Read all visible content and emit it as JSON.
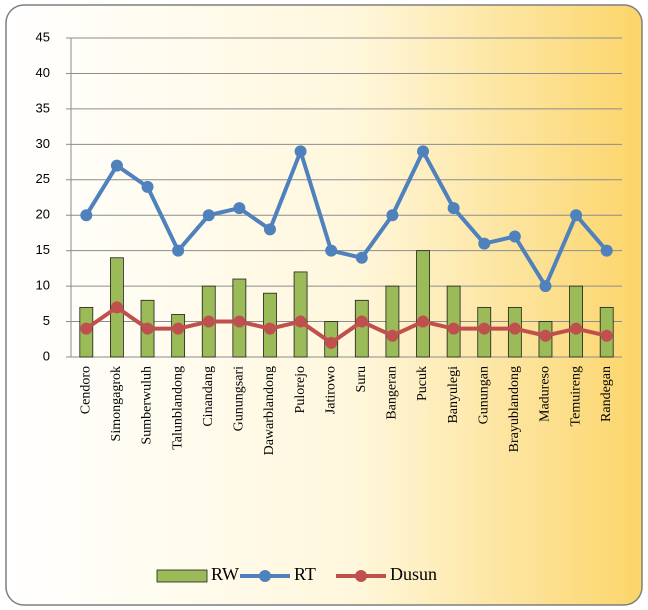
{
  "chart_data": {
    "type": "combo",
    "categories": [
      "Cendoro",
      "Simongagrok",
      "Sumberwuluh",
      "Talunblandong",
      "Cinandang",
      "Gunungsari",
      "Dawarblandong",
      "Pulorejo",
      "Jatirowo",
      "Suru",
      "Bangeran",
      "Pucuk",
      "Banyulegi",
      "Gunungan",
      "Brayublandong",
      "Madureso",
      "Temuireng",
      "Randegan"
    ],
    "series": [
      {
        "name": "RW",
        "type": "bar",
        "color": "#9bbb59",
        "values": [
          7,
          14,
          8,
          6,
          10,
          11,
          9,
          12,
          5,
          8,
          10,
          15,
          10,
          7,
          7,
          5,
          10,
          7
        ]
      },
      {
        "name": "RT",
        "type": "line",
        "color": "#4f81bd",
        "values": [
          20,
          27,
          24,
          15,
          20,
          21,
          18,
          29,
          15,
          14,
          20,
          29,
          21,
          16,
          17,
          10,
          20,
          15
        ]
      },
      {
        "name": "Dusun",
        "type": "line",
        "color": "#c0504d",
        "values": [
          4,
          7,
          4,
          4,
          5,
          5,
          4,
          5,
          2,
          5,
          3,
          5,
          4,
          4,
          4,
          3,
          4,
          3
        ]
      }
    ],
    "ylim": [
      0,
      45
    ],
    "yticks": [
      0,
      5,
      10,
      15,
      20,
      25,
      30,
      35,
      40,
      45
    ],
    "grid": true,
    "legend": "bottom"
  }
}
